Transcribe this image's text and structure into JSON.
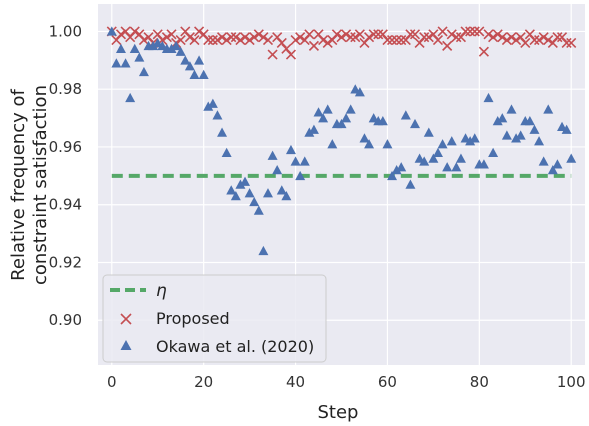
{
  "chart_data": {
    "type": "scatter",
    "title": "",
    "xlabel": "Step",
    "ylabel_lines": [
      "Relative frequency of",
      "constraint satisfaction"
    ],
    "xlim": [
      -3,
      103
    ],
    "ylim": [
      0.8845,
      1.0095
    ],
    "xticks": [
      0,
      20,
      40,
      60,
      80,
      100
    ],
    "xtick_labels": [
      "0",
      "20",
      "40",
      "60",
      "80",
      "100"
    ],
    "yticks": [
      0.9,
      0.92,
      0.94,
      0.96,
      0.98,
      1.0
    ],
    "ytick_labels": [
      "0.90",
      "0.92",
      "0.94",
      "0.96",
      "0.98",
      "1.00"
    ],
    "grid": true,
    "background": "#eaeaf2",
    "legend_position": "lower-left",
    "reference_line": {
      "name": "η",
      "value": 0.95,
      "style": "dashed",
      "color": "#55a868"
    },
    "series": [
      {
        "name": "Proposed",
        "marker": "x",
        "color": "#c44e52",
        "x": [
          0,
          1,
          2,
          3,
          4,
          5,
          6,
          7,
          8,
          9,
          10,
          11,
          12,
          13,
          14,
          15,
          16,
          17,
          18,
          19,
          20,
          21,
          22,
          23,
          24,
          25,
          26,
          27,
          28,
          29,
          30,
          31,
          32,
          33,
          34,
          35,
          36,
          37,
          38,
          39,
          40,
          41,
          42,
          43,
          44,
          45,
          46,
          47,
          48,
          49,
          50,
          51,
          52,
          53,
          54,
          55,
          56,
          57,
          58,
          59,
          60,
          61,
          62,
          63,
          64,
          65,
          66,
          67,
          68,
          69,
          70,
          71,
          72,
          73,
          74,
          75,
          76,
          77,
          78,
          79,
          80,
          81,
          82,
          83,
          84,
          85,
          86,
          87,
          88,
          89,
          90,
          91,
          92,
          93,
          94,
          95,
          96,
          97,
          98,
          99,
          100
        ],
        "y": [
          1.0,
          0.997,
          0.999,
          1.0,
          0.998,
          1.0,
          0.999,
          0.997,
          0.998,
          0.996,
          0.999,
          0.997,
          0.998,
          0.999,
          0.996,
          0.997,
          1.0,
          0.998,
          0.997,
          1.0,
          0.999,
          0.997,
          0.997,
          0.997,
          0.998,
          0.997,
          0.998,
          0.998,
          0.997,
          0.998,
          0.997,
          0.998,
          0.999,
          0.998,
          0.997,
          0.992,
          0.998,
          0.996,
          0.994,
          0.992,
          0.997,
          0.998,
          0.997,
          0.999,
          0.995,
          0.999,
          0.997,
          0.996,
          0.997,
          0.999,
          0.998,
          0.999,
          0.998,
          0.998,
          0.999,
          0.996,
          0.998,
          0.999,
          0.999,
          0.999,
          0.997,
          0.997,
          0.997,
          0.997,
          0.997,
          0.999,
          0.999,
          0.996,
          0.998,
          0.998,
          0.999,
          0.997,
          1.0,
          0.995,
          0.999,
          0.998,
          0.998,
          1.0,
          1.0,
          1.0,
          1.0,
          0.993,
          0.999,
          0.998,
          0.999,
          0.998,
          0.997,
          0.998,
          0.997,
          0.998,
          0.996,
          0.999,
          0.997,
          0.997,
          0.998,
          0.997,
          0.996,
          0.998,
          0.998,
          0.996,
          0.996
        ]
      },
      {
        "name": "Okawa et al. (2020)",
        "marker": "triangle",
        "color": "#4c72b0",
        "x": [
          0,
          1,
          2,
          3,
          4,
          5,
          6,
          7,
          8,
          9,
          10,
          11,
          12,
          13,
          14,
          15,
          16,
          17,
          18,
          19,
          20,
          21,
          22,
          23,
          24,
          25,
          26,
          27,
          28,
          29,
          30,
          31,
          32,
          33,
          34,
          35,
          36,
          37,
          38,
          39,
          40,
          41,
          42,
          43,
          44,
          45,
          46,
          47,
          48,
          49,
          50,
          51,
          52,
          53,
          54,
          55,
          56,
          57,
          58,
          59,
          60,
          61,
          62,
          63,
          64,
          65,
          66,
          67,
          68,
          69,
          70,
          71,
          72,
          73,
          74,
          75,
          76,
          77,
          78,
          79,
          80,
          81,
          82,
          83,
          84,
          85,
          86,
          87,
          88,
          89,
          90,
          91,
          92,
          93,
          94,
          95,
          96,
          97,
          98,
          99,
          100
        ],
        "y": [
          1.0,
          0.989,
          0.994,
          0.989,
          0.977,
          0.994,
          0.991,
          0.986,
          0.995,
          0.995,
          0.996,
          0.995,
          0.994,
          0.994,
          0.995,
          0.993,
          0.99,
          0.988,
          0.985,
          0.99,
          0.985,
          0.974,
          0.975,
          0.971,
          0.965,
          0.958,
          0.945,
          0.943,
          0.947,
          0.948,
          0.944,
          0.941,
          0.938,
          0.924,
          0.944,
          0.957,
          0.952,
          0.945,
          0.943,
          0.959,
          0.955,
          0.95,
          0.955,
          0.965,
          0.966,
          0.972,
          0.97,
          0.973,
          0.961,
          0.968,
          0.968,
          0.97,
          0.973,
          0.98,
          0.979,
          0.963,
          0.961,
          0.97,
          0.969,
          0.969,
          0.961,
          0.95,
          0.952,
          0.953,
          0.971,
          0.947,
          0.968,
          0.956,
          0.955,
          0.965,
          0.956,
          0.958,
          0.961,
          0.953,
          0.962,
          0.953,
          0.956,
          0.963,
          0.962,
          0.963,
          0.954,
          0.954,
          0.977,
          0.958,
          0.969,
          0.97,
          0.964,
          0.973,
          0.963,
          0.964,
          0.969,
          0.969,
          0.966,
          0.962,
          0.955,
          0.973,
          0.952,
          0.954,
          0.967,
          0.966,
          0.956
        ]
      }
    ]
  }
}
